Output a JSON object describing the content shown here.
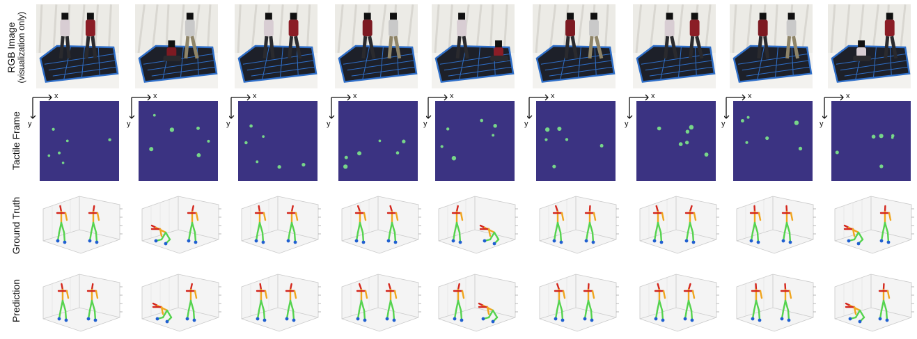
{
  "row_labels": {
    "rgb_line1": "RGB Image",
    "rgb_line2": "(visualization only)",
    "tactile": "Tactile Frame",
    "ground_truth": "Ground Truth",
    "prediction": "Prediction"
  },
  "axis_labels": {
    "x": "x",
    "y": "y"
  },
  "colors": {
    "tactile_background": "#3b3382",
    "tactile_hot": "#7ee88a",
    "mat_frame": "#2f6fc9",
    "skeleton_head": "#d4261c",
    "skeleton_torso": "#f0a51e",
    "skeleton_legs": "#55d34e",
    "skeleton_feet": "#1f5fd0"
  },
  "columns": 9
}
